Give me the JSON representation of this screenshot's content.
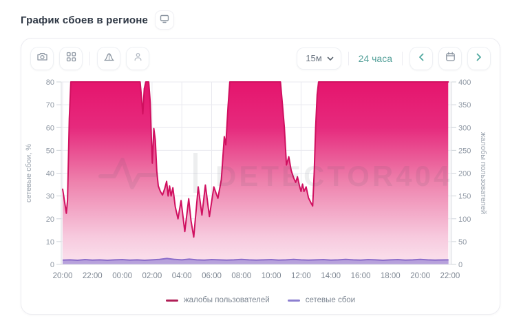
{
  "page_title": "График сбоев в регионе",
  "toolbar": {
    "interval_value": "15м",
    "range_label": "24 часа"
  },
  "legend": [
    {
      "label": "жалобы пользователей",
      "color": "#b01e56"
    },
    {
      "label": "сетевые сбои",
      "color": "#8c7fd0"
    }
  ],
  "watermark": "DETECTOR404",
  "colors": {
    "accent_teal": "#4fa89f",
    "pink_line": "#d01060",
    "pink_top": "#e5156d",
    "pink_bottom": "#fbe3ee",
    "purple_line": "#8b6cc9",
    "purple_fill": "#b7a1dc",
    "grid": "#e9e9ef",
    "axis": "#d9dbe2",
    "tick_text": "#8e97a3"
  },
  "chart_data": {
    "type": "area",
    "title": "График сбоев в регионе",
    "x_labels": [
      "20:00",
      "22:00",
      "00:00",
      "02:00",
      "04:00",
      "06:00",
      "08:00",
      "10:00",
      "12:00",
      "14:00",
      "16:00",
      "18:00",
      "20:00",
      "22:00"
    ],
    "x_hours_range": [
      0,
      26
    ],
    "grid": true,
    "legend_position": "bottom",
    "left_axis": {
      "label": "сетевые сбои, %",
      "min": 0,
      "max": 80,
      "ticks": [
        0,
        10,
        20,
        30,
        40,
        50,
        60,
        70,
        80
      ]
    },
    "right_axis": {
      "label": "жалобы пользователей",
      "min": 0,
      "max": 400,
      "ticks": [
        0,
        50,
        100,
        150,
        200,
        250,
        300,
        350,
        400
      ]
    },
    "series": [
      {
        "name": "жалобы пользователей",
        "axis": "right",
        "clip_max": 400,
        "points": [
          [
            0,
            165
          ],
          [
            0.12,
            140
          ],
          [
            0.25,
            112
          ],
          [
            0.33,
            140
          ],
          [
            0.45,
            320
          ],
          [
            0.55,
            400
          ],
          [
            5.2,
            400
          ],
          [
            5.3,
            365
          ],
          [
            5.38,
            330
          ],
          [
            5.48,
            385
          ],
          [
            5.58,
            400
          ],
          [
            5.78,
            400
          ],
          [
            5.88,
            355
          ],
          [
            5.96,
            275
          ],
          [
            6.02,
            222
          ],
          [
            6.12,
            298
          ],
          [
            6.22,
            272
          ],
          [
            6.32,
            205
          ],
          [
            6.42,
            172
          ],
          [
            6.56,
            160
          ],
          [
            6.7,
            152
          ],
          [
            6.85,
            166
          ],
          [
            6.98,
            182
          ],
          [
            7.08,
            150
          ],
          [
            7.18,
            172
          ],
          [
            7.28,
            150
          ],
          [
            7.4,
            168
          ],
          [
            7.56,
            126
          ],
          [
            7.74,
            100
          ],
          [
            7.95,
            140
          ],
          [
            8.2,
            72
          ],
          [
            8.46,
            144
          ],
          [
            8.62,
            95
          ],
          [
            8.8,
            60
          ],
          [
            9.1,
            170
          ],
          [
            9.35,
            108
          ],
          [
            9.58,
            174
          ],
          [
            9.85,
            105
          ],
          [
            10.15,
            170
          ],
          [
            10.42,
            145
          ],
          [
            10.65,
            186
          ],
          [
            10.85,
            280
          ],
          [
            10.95,
            262
          ],
          [
            11.1,
            345
          ],
          [
            11.22,
            400
          ],
          [
            14.62,
            400
          ],
          [
            14.75,
            352
          ],
          [
            14.88,
            300
          ],
          [
            15.02,
            218
          ],
          [
            15.18,
            236
          ],
          [
            15.34,
            206
          ],
          [
            15.5,
            190
          ],
          [
            15.64,
            180
          ],
          [
            15.76,
            192
          ],
          [
            15.9,
            172
          ],
          [
            16.0,
            160
          ],
          [
            16.1,
            176
          ],
          [
            16.2,
            160
          ],
          [
            16.34,
            170
          ],
          [
            16.5,
            146
          ],
          [
            16.68,
            134
          ],
          [
            16.78,
            128
          ],
          [
            16.88,
            200
          ],
          [
            16.98,
            300
          ],
          [
            17.08,
            372
          ],
          [
            17.18,
            400
          ],
          [
            25.88,
            400
          ]
        ]
      },
      {
        "name": "сетевые сбои",
        "axis": "left",
        "points": [
          [
            0,
            1.9
          ],
          [
            0.5,
            2.0
          ],
          [
            1,
            1.8
          ],
          [
            1.5,
            2.1
          ],
          [
            2,
            1.9
          ],
          [
            2.5,
            2.0
          ],
          [
            3,
            1.8
          ],
          [
            3.5,
            2.0
          ],
          [
            4,
            2.1
          ],
          [
            4.5,
            1.9
          ],
          [
            5,
            2.0
          ],
          [
            5.5,
            1.8
          ],
          [
            6,
            2.0
          ],
          [
            6.5,
            2.2
          ],
          [
            7,
            2.6
          ],
          [
            7.5,
            2.2
          ],
          [
            8,
            2.0
          ],
          [
            8.5,
            2.3
          ],
          [
            9,
            2.0
          ],
          [
            9.5,
            1.9
          ],
          [
            10,
            2.1
          ],
          [
            10.5,
            2.0
          ],
          [
            11,
            1.9
          ],
          [
            11.5,
            2.0
          ],
          [
            12,
            2.2
          ],
          [
            12.5,
            2.0
          ],
          [
            13,
            1.9
          ],
          [
            13.5,
            2.0
          ],
          [
            14,
            2.1
          ],
          [
            14.5,
            1.9
          ],
          [
            15,
            2.0
          ],
          [
            15.5,
            2.2
          ],
          [
            16,
            2.0
          ],
          [
            16.5,
            1.9
          ],
          [
            17,
            2.0
          ],
          [
            17.5,
            2.1
          ],
          [
            18,
            1.9
          ],
          [
            18.5,
            2.0
          ],
          [
            19,
            2.2
          ],
          [
            19.5,
            2.0
          ],
          [
            20,
            1.9
          ],
          [
            20.5,
            2.1
          ],
          [
            21,
            2.0
          ],
          [
            21.5,
            1.8
          ],
          [
            22,
            2.0
          ],
          [
            22.5,
            2.1
          ],
          [
            23,
            1.9
          ],
          [
            23.5,
            2.0
          ],
          [
            24,
            2.2
          ],
          [
            24.5,
            2.0
          ],
          [
            25,
            1.9
          ],
          [
            25.9,
            2.0
          ]
        ]
      }
    ]
  }
}
